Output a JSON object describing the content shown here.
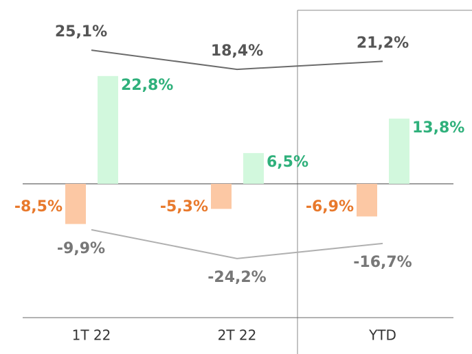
{
  "chart_data": {
    "type": "bar",
    "categories": [
      "1T 22",
      "2T 22",
      "YTD"
    ],
    "ylim": [
      -28.3,
      36.7
    ],
    "series": [
      {
        "kind": "bar",
        "color": "#fcc8a4",
        "label_color": "#e8792c",
        "values": [
          -8.5,
          -5.3,
          -6.9
        ],
        "value_labels": [
          "-8,5%",
          "-5,3%",
          "-6,9%"
        ]
      },
      {
        "kind": "bar",
        "color": "#d2f8dd",
        "label_color": "#2fb07b",
        "values": [
          22.8,
          6.5,
          13.8
        ],
        "value_labels": [
          "22,8%",
          "6,5%",
          "13,8%"
        ]
      },
      {
        "kind": "line",
        "color": "#6b6b6b",
        "label_color": "#555555",
        "ylim": [
          -68.2,
          39.0
        ],
        "values": [
          25.1,
          18.4,
          21.2
        ],
        "value_labels": [
          "25,1%",
          "18,4%",
          "21,2%"
        ]
      },
      {
        "kind": "line",
        "color": "#b0b0b0",
        "label_color": "#777777",
        "ylim": [
          -53.5,
          98.9
        ],
        "values": [
          -9.9,
          -24.2,
          -16.7
        ],
        "value_labels": [
          "-9,9%",
          "-24,2%",
          "-16,7%"
        ]
      }
    ]
  }
}
